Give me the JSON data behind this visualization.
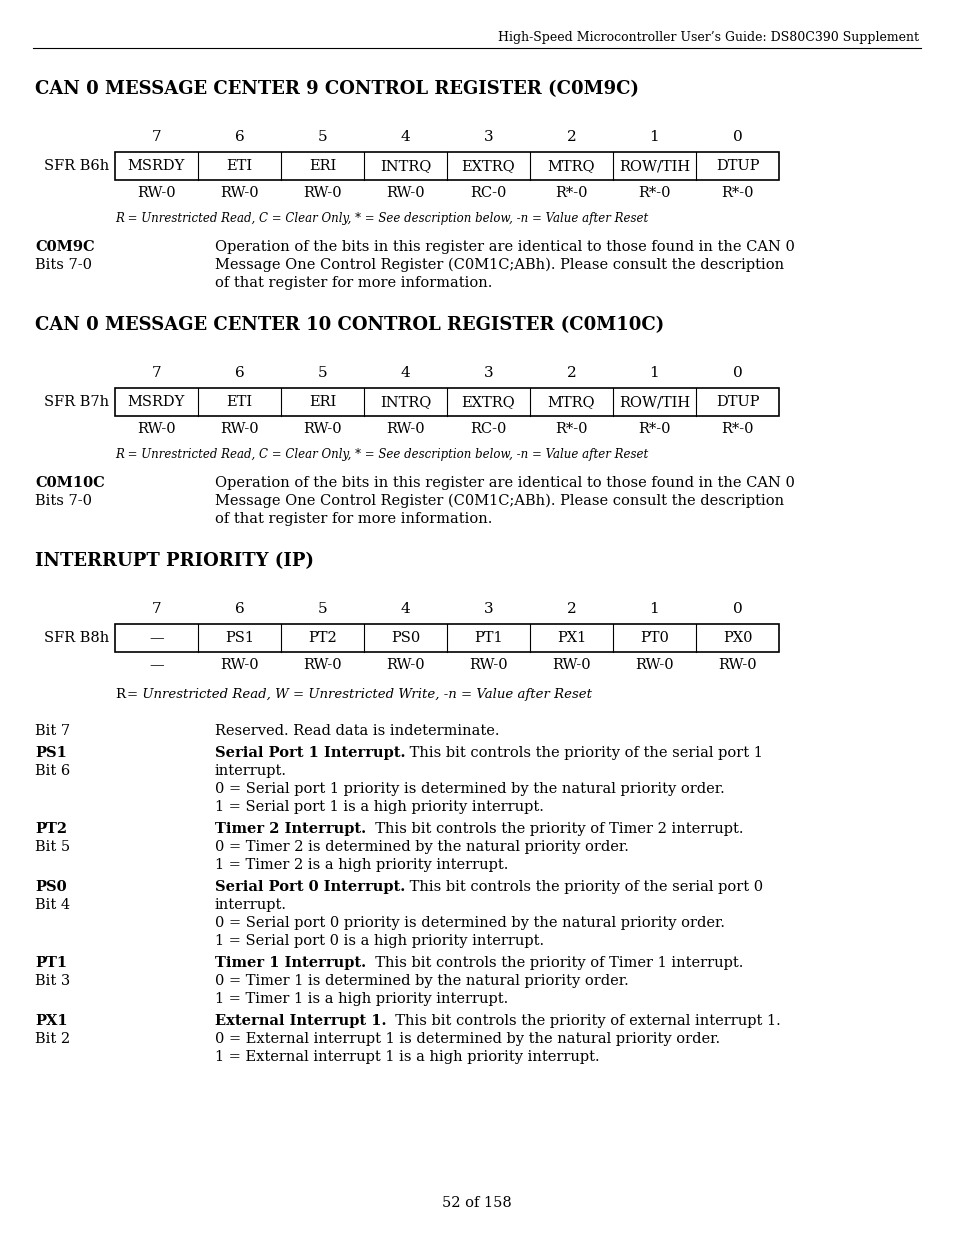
{
  "header_text": "High-Speed Microcontroller User’s Guide: DS80C390 Supplement",
  "page_footer": "52 of 158",
  "section1_title": "CAN 0 MESSAGE CENTER 9 CONTROL REGISTER (C0M9C)",
  "section2_title": "CAN 0 MESSAGE CENTER 10 CONTROL REGISTER (C0M10C)",
  "section3_title": "INTERRUPT PRIORITY (IP)",
  "reg1_label": "SFR B6h",
  "reg2_label": "SFR B7h",
  "reg3_label": "SFR B8h",
  "bit_numbers": [
    "7",
    "6",
    "5",
    "4",
    "3",
    "2",
    "1",
    "0"
  ],
  "reg12_fields": [
    "MSRDY",
    "ETI",
    "ERI",
    "INTRQ",
    "EXTRQ",
    "MTRQ",
    "ROW/TIH",
    "DTUP"
  ],
  "reg12_modes": [
    "RW-0",
    "RW-0",
    "RW-0",
    "RW-0",
    "RC-0",
    "R*-0",
    "R*-0",
    "R*-0"
  ],
  "reg3_fields": [
    "—",
    "PS1",
    "PT2",
    "PS0",
    "PT1",
    "PX1",
    "PT0",
    "PX0"
  ],
  "reg3_modes": [
    "—",
    "RW-0",
    "RW-0",
    "RW-0",
    "RW-0",
    "RW-0",
    "RW-0",
    "RW-0"
  ],
  "footnote12": "R = Unrestricted Read, C = Clear Only, * = See description below, -n = Value after Reset",
  "footnote3": "R = Unrestricted Read, W = Unrestricted Write, -n = Value after Reset",
  "c0m9c_label1": "C0M9C",
  "c0m9c_label2": "Bits 7-0",
  "c0m10c_label1": "C0M10C",
  "c0m10c_label2": "Bits 7-0",
  "desc_lines": [
    "Operation of the bits in this register are identical to those found in the CAN 0",
    "Message One Control Register (C0M1C;ABh). Please consult the description",
    "of that register for more information."
  ],
  "ip_entries": [
    {
      "label1": "Bit 7",
      "label1_bold": false,
      "label2": "",
      "bold_part": "",
      "line1_rest": "Reserved. Read data is indeterminate.",
      "extra_lines": []
    },
    {
      "label1": "PS1",
      "label1_bold": true,
      "label2": "Bit 6",
      "bold_part": "Serial Port 1 Interrupt.",
      "line1_rest": " This bit controls the priority of the serial port 1",
      "extra_lines": [
        "interrupt.",
        "0 = Serial port 1 priority is determined by the natural priority order.",
        "1 = Serial port 1 is a high priority interrupt."
      ]
    },
    {
      "label1": "PT2",
      "label1_bold": true,
      "label2": "Bit 5",
      "bold_part": "Timer 2 Interrupt.",
      "line1_rest": "  This bit controls the priority of Timer 2 interrupt.",
      "extra_lines": [
        "0 = Timer 2 is determined by the natural priority order.",
        "1 = Timer 2 is a high priority interrupt."
      ]
    },
    {
      "label1": "PS0",
      "label1_bold": true,
      "label2": "Bit 4",
      "bold_part": "Serial Port 0 Interrupt.",
      "line1_rest": " This bit controls the priority of the serial port 0",
      "extra_lines": [
        "interrupt.",
        "0 = Serial port 0 priority is determined by the natural priority order.",
        "1 = Serial port 0 is a high priority interrupt."
      ]
    },
    {
      "label1": "PT1",
      "label1_bold": true,
      "label2": "Bit 3",
      "bold_part": "Timer 1 Interrupt.",
      "line1_rest": "  This bit controls the priority of Timer 1 interrupt.",
      "extra_lines": [
        "0 = Timer 1 is determined by the natural priority order.",
        "1 = Timer 1 is a high priority interrupt."
      ]
    },
    {
      "label1": "PX1",
      "label1_bold": true,
      "label2": "Bit 2",
      "bold_part": "External Interrupt 1.",
      "line1_rest": "  This bit controls the priority of external interrupt 1.",
      "extra_lines": [
        "0 = External interrupt 1 is determined by the natural priority order.",
        "1 = External interrupt 1 is a high priority interrupt."
      ]
    }
  ],
  "bg_color": "#ffffff",
  "text_color": "#000000"
}
